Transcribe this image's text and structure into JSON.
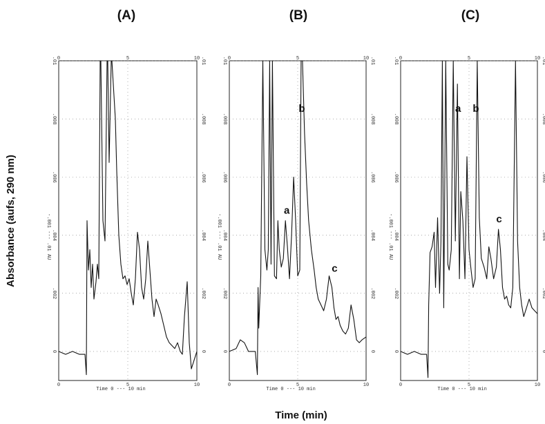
{
  "chart_data": {
    "type": "line",
    "xlabel": "Time (min)",
    "ylabel": "Absorbance (aufs, 290 nm)",
    "xlim": [
      0,
      10
    ],
    "ylim": [
      -0.001,
      0.01
    ],
    "x_ticks": [
      "0",
      "5",
      "10"
    ],
    "y_ticks": [
      "0",
      ".002",
      ".004",
      ".006",
      ".008",
      ".01"
    ],
    "instrument_labels": {
      "y_scale": "-.001 --- .01 AU",
      "time_scale": "Time  0 --- 10 min"
    },
    "panels": [
      {
        "title": "(A)",
        "annotations": [],
        "x": [
          0,
          0.5,
          1.0,
          1.5,
          1.9,
          2.0,
          2.05,
          2.15,
          2.25,
          2.35,
          2.45,
          2.55,
          2.7,
          2.8,
          2.9,
          3.0,
          3.05,
          3.2,
          3.35,
          3.5,
          3.55,
          3.65,
          3.8,
          3.85,
          3.95,
          4.1,
          4.2,
          4.35,
          4.5,
          4.65,
          4.8,
          4.95,
          5.1,
          5.25,
          5.4,
          5.55,
          5.7,
          5.85,
          6.0,
          6.15,
          6.3,
          6.45,
          6.6,
          6.75,
          6.9,
          7.05,
          7.2,
          7.4,
          7.6,
          7.8,
          8.0,
          8.2,
          8.4,
          8.6,
          8.8,
          8.95,
          9.1,
          9.3,
          9.45,
          9.6,
          10.0
        ],
        "y": [
          0.0,
          -0.0001,
          0.0,
          -0.0001,
          -0.0001,
          -0.0008,
          0.0045,
          0.0028,
          0.0035,
          0.0022,
          0.003,
          0.0018,
          0.0024,
          0.003,
          0.0025,
          0.01,
          0.01,
          0.0045,
          0.0038,
          0.01,
          0.01,
          0.0065,
          0.01,
          0.01,
          0.0092,
          0.008,
          0.0062,
          0.004,
          0.003,
          0.0025,
          0.0026,
          0.0023,
          0.0025,
          0.002,
          0.0016,
          0.0025,
          0.0041,
          0.0035,
          0.0022,
          0.0018,
          0.0025,
          0.0038,
          0.0028,
          0.0018,
          0.0012,
          0.0018,
          0.0016,
          0.0013,
          0.0009,
          0.0005,
          0.0003,
          0.0002,
          0.0001,
          0.0003,
          0.0,
          -0.0001,
          0.0012,
          0.0024,
          0.0003,
          -0.0006,
          0.0
        ]
      },
      {
        "title": "(B)",
        "annotations": [
          {
            "label": "a",
            "x": 4.2,
            "y": 0.0046
          },
          {
            "label": "b",
            "x": 5.3,
            "y": 0.0081
          },
          {
            "label": "c",
            "x": 7.7,
            "y": 0.0026
          }
        ],
        "x": [
          0,
          0.5,
          0.8,
          1.1,
          1.4,
          1.7,
          1.9,
          2.05,
          2.1,
          2.15,
          2.3,
          2.45,
          2.6,
          2.75,
          2.85,
          2.95,
          3.05,
          3.15,
          3.3,
          3.45,
          3.55,
          3.65,
          3.8,
          3.95,
          4.1,
          4.25,
          4.4,
          4.55,
          4.7,
          4.85,
          5.0,
          5.15,
          5.25,
          5.35,
          5.5,
          5.65,
          5.8,
          6.0,
          6.2,
          6.35,
          6.5,
          6.7,
          6.9,
          7.1,
          7.3,
          7.5,
          7.65,
          7.8,
          7.95,
          8.1,
          8.3,
          8.5,
          8.7,
          8.9,
          9.1,
          9.3,
          9.5,
          9.7,
          10.0
        ],
        "y": [
          0.0,
          0.0001,
          0.0004,
          0.0003,
          0.0,
          0.0,
          0.0,
          -0.0008,
          0.0022,
          0.0008,
          0.0026,
          0.01,
          0.0035,
          0.0028,
          0.0035,
          0.01,
          0.003,
          0.01,
          0.0026,
          0.0025,
          0.0045,
          0.0035,
          0.0029,
          0.0032,
          0.0045,
          0.0036,
          0.0025,
          0.004,
          0.006,
          0.0045,
          0.0026,
          0.0028,
          0.01,
          0.01,
          0.0075,
          0.0058,
          0.0045,
          0.0035,
          0.0028,
          0.0022,
          0.0018,
          0.0016,
          0.0014,
          0.0018,
          0.0026,
          0.0022,
          0.0015,
          0.0011,
          0.0012,
          0.0009,
          0.0007,
          0.0006,
          0.0008,
          0.0016,
          0.0011,
          0.0004,
          0.0003,
          0.0004,
          0.0005
        ]
      },
      {
        "title": "(C)",
        "annotations": [
          {
            "label": "a",
            "x": 4.2,
            "y": 0.0081
          },
          {
            "label": "b",
            "x": 5.5,
            "y": 0.0081
          },
          {
            "label": "c",
            "x": 7.2,
            "y": 0.0043
          }
        ],
        "x": [
          0,
          0.5,
          1.0,
          1.5,
          1.9,
          2.0,
          2.05,
          2.15,
          2.3,
          2.45,
          2.55,
          2.7,
          2.85,
          2.95,
          3.05,
          3.15,
          3.3,
          3.45,
          3.55,
          3.7,
          3.85,
          4.0,
          4.15,
          4.3,
          4.4,
          4.55,
          4.7,
          4.85,
          5.0,
          5.15,
          5.3,
          5.45,
          5.6,
          5.75,
          5.9,
          6.1,
          6.3,
          6.45,
          6.6,
          6.8,
          7.0,
          7.15,
          7.3,
          7.45,
          7.6,
          7.75,
          7.9,
          8.05,
          8.2,
          8.4,
          8.55,
          8.7,
          8.85,
          9.0,
          9.2,
          9.4,
          9.6,
          9.8,
          10.0
        ],
        "y": [
          0.0,
          -0.0001,
          0.0,
          -0.0001,
          -0.0001,
          -0.0009,
          0.0016,
          0.0034,
          0.0036,
          0.0041,
          0.0022,
          0.0046,
          0.002,
          0.0038,
          0.01,
          0.0015,
          0.01,
          0.003,
          0.0028,
          0.0035,
          0.01,
          0.0038,
          0.0092,
          0.0025,
          0.0055,
          0.0045,
          0.0025,
          0.0067,
          0.0035,
          0.0028,
          0.0022,
          0.0025,
          0.01,
          0.0046,
          0.0032,
          0.0029,
          0.0025,
          0.0036,
          0.0032,
          0.0025,
          0.0029,
          0.0042,
          0.0035,
          0.0022,
          0.0018,
          0.0019,
          0.0016,
          0.0015,
          0.0022,
          0.01,
          0.0038,
          0.0022,
          0.0016,
          0.0012,
          0.0015,
          0.0018,
          0.0015,
          0.0014,
          0.0013
        ]
      }
    ]
  }
}
